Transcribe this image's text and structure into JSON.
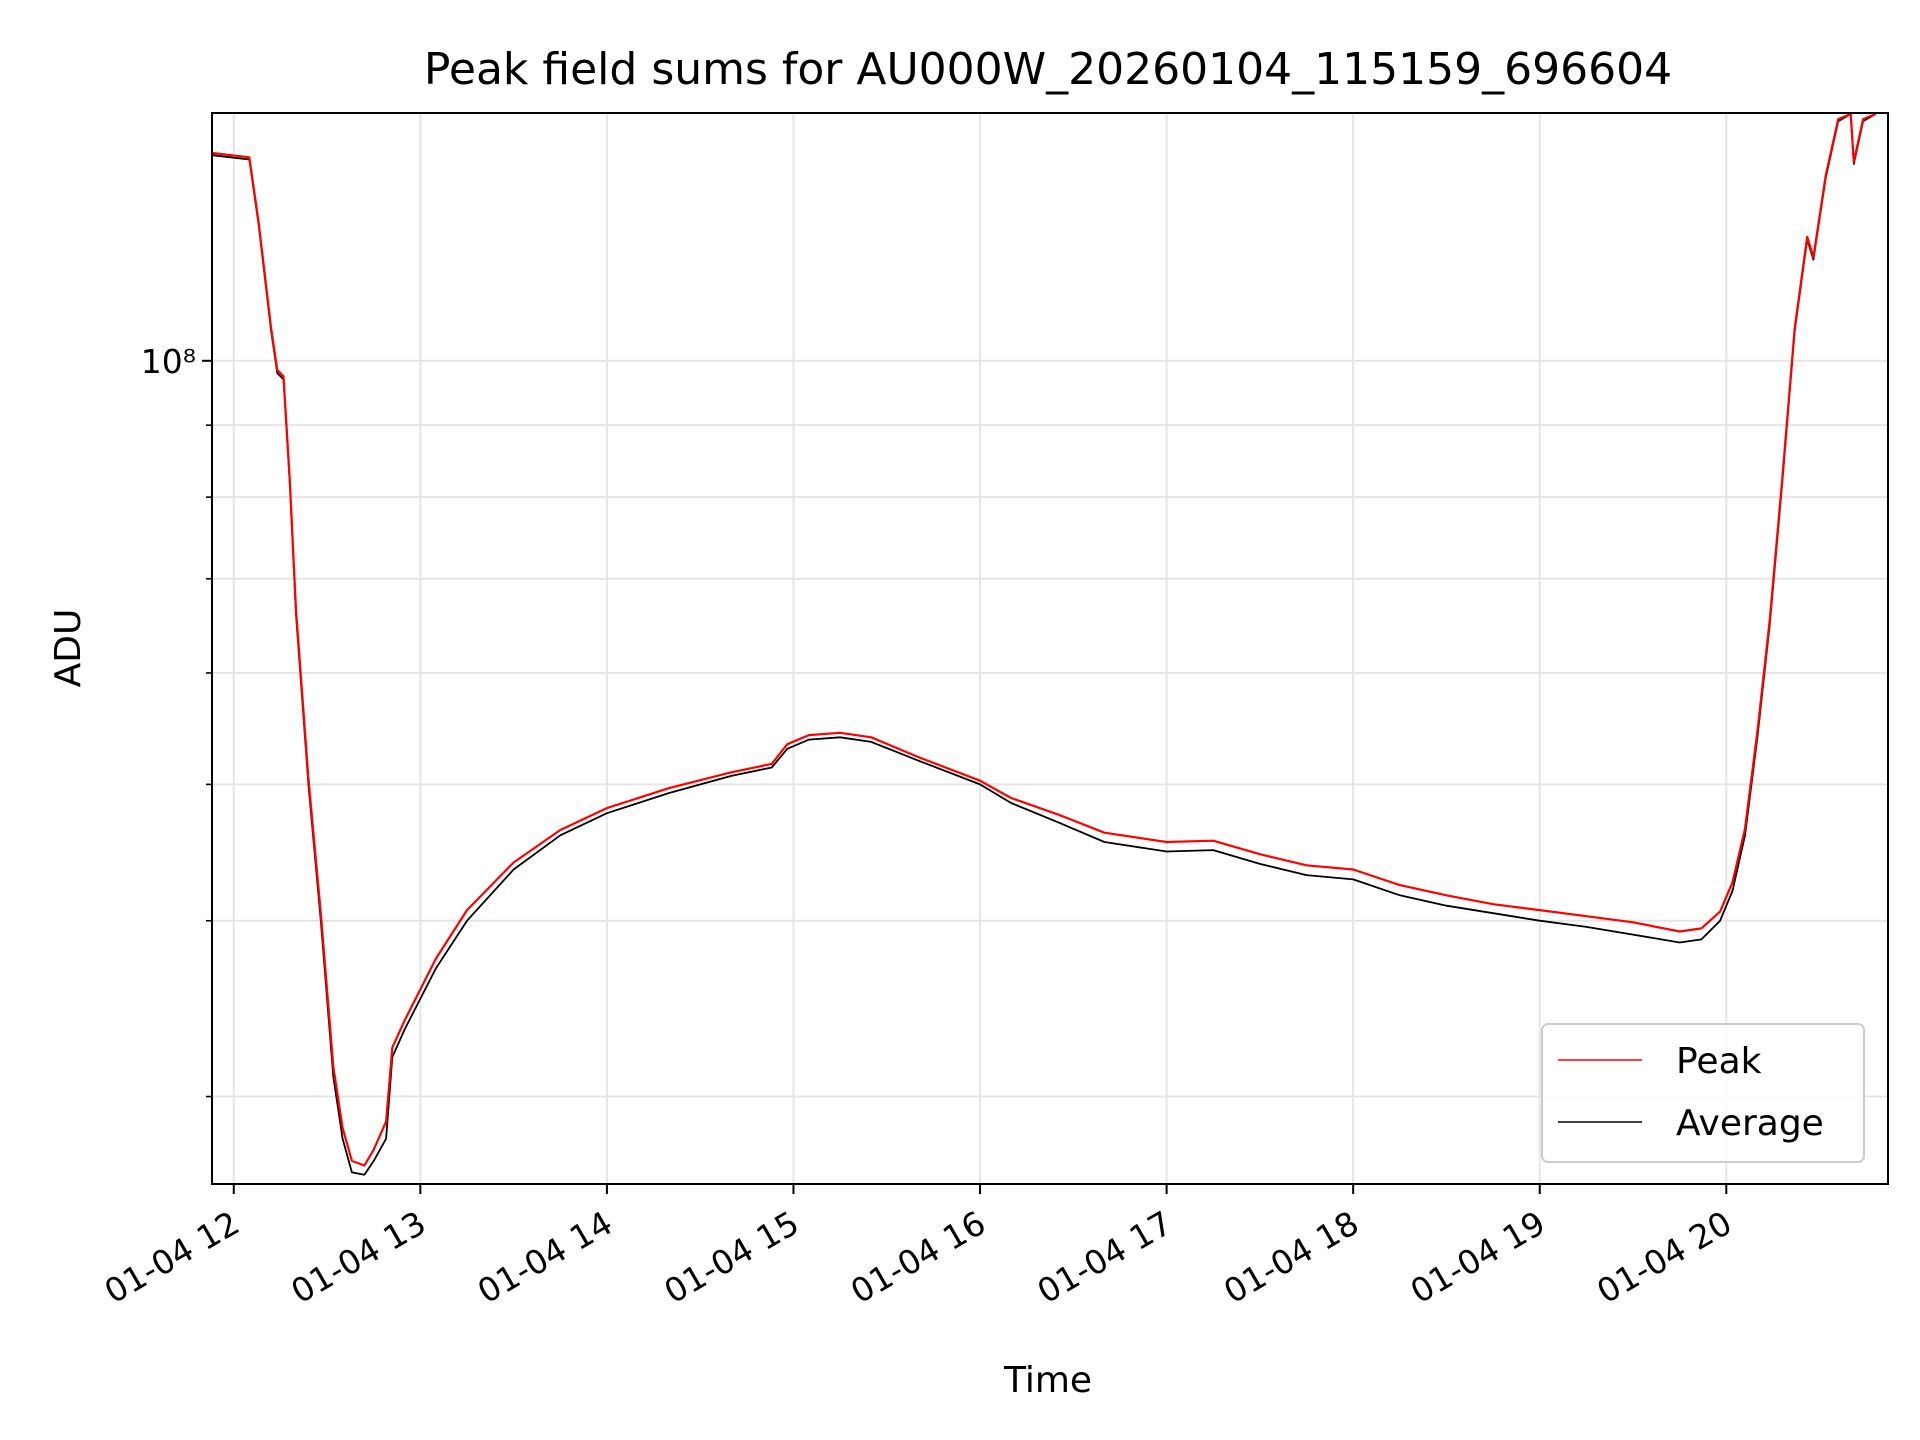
{
  "chart_data": {
    "type": "line",
    "title": "Peak field sums for AU000W_20260104_115159_696604",
    "xlabel": "Time",
    "ylabel": "ADU",
    "y_scale": "log",
    "grid": true,
    "legend_position": "lower-right",
    "xlim": [
      "2026-01-04 11:53",
      "2026-01-04 20:52"
    ],
    "ylim": [
      26000000,
      150000000
    ],
    "x_ticks": [
      {
        "value": "2026-01-04 12:00",
        "label": "01-04 12"
      },
      {
        "value": "2026-01-04 13:00",
        "label": "01-04 13"
      },
      {
        "value": "2026-01-04 14:00",
        "label": "01-04 14"
      },
      {
        "value": "2026-01-04 15:00",
        "label": "01-04 15"
      },
      {
        "value": "2026-01-04 16:00",
        "label": "01-04 16"
      },
      {
        "value": "2026-01-04 17:00",
        "label": "01-04 17"
      },
      {
        "value": "2026-01-04 18:00",
        "label": "01-04 18"
      },
      {
        "value": "2026-01-04 19:00",
        "label": "01-04 19"
      },
      {
        "value": "2026-01-04 20:00",
        "label": "01-04 20"
      }
    ],
    "y_major_ticks": [
      {
        "value": 100000000,
        "label": "10⁸"
      }
    ],
    "y_minor_ticks": [
      30000000,
      40000000,
      50000000,
      60000000,
      70000000,
      80000000,
      90000000,
      200000000
    ],
    "series": [
      {
        "name": "Average",
        "color": "#000000",
        "points": [
          [
            "2026-01-04 11:53",
            140000000
          ],
          [
            "2026-01-04 12:05",
            139000000
          ],
          [
            "2026-01-04 12:08",
            125000000
          ],
          [
            "2026-01-04 12:12",
            105000000
          ],
          [
            "2026-01-04 12:14",
            98000000
          ],
          [
            "2026-01-04 12:16",
            97000000
          ],
          [
            "2026-01-04 12:18",
            82000000
          ],
          [
            "2026-01-04 12:20",
            66000000
          ],
          [
            "2026-01-04 12:24",
            50000000
          ],
          [
            "2026-01-04 12:28",
            40000000
          ],
          [
            "2026-01-04 12:32",
            31000000
          ],
          [
            "2026-01-04 12:35",
            28000000
          ],
          [
            "2026-01-04 12:38",
            26500000
          ],
          [
            "2026-01-04 12:42",
            26400000
          ],
          [
            "2026-01-04 12:45",
            27000000
          ],
          [
            "2026-01-04 12:49",
            28000000
          ],
          [
            "2026-01-04 12:51",
            32000000
          ],
          [
            "2026-01-04 12:55",
            33500000
          ],
          [
            "2026-01-04 13:05",
            37000000
          ],
          [
            "2026-01-04 13:15",
            40000000
          ],
          [
            "2026-01-04 13:30",
            43500000
          ],
          [
            "2026-01-04 13:45",
            46000000
          ],
          [
            "2026-01-04 14:00",
            47700000
          ],
          [
            "2026-01-04 14:20",
            49300000
          ],
          [
            "2026-01-04 14:40",
            50700000
          ],
          [
            "2026-01-04 14:53",
            51400000
          ],
          [
            "2026-01-04 14:58",
            53000000
          ],
          [
            "2026-01-04 15:05",
            53800000
          ],
          [
            "2026-01-04 15:15",
            54000000
          ],
          [
            "2026-01-04 15:25",
            53600000
          ],
          [
            "2026-01-04 15:40",
            52000000
          ],
          [
            "2026-01-04 16:00",
            50000000
          ],
          [
            "2026-01-04 16:10",
            48500000
          ],
          [
            "2026-01-04 16:25",
            47000000
          ],
          [
            "2026-01-04 16:40",
            45500000
          ],
          [
            "2026-01-04 17:00",
            44800000
          ],
          [
            "2026-01-04 17:15",
            44900000
          ],
          [
            "2026-01-04 17:30",
            43900000
          ],
          [
            "2026-01-04 17:45",
            43100000
          ],
          [
            "2026-01-04 18:00",
            42800000
          ],
          [
            "2026-01-04 18:15",
            41700000
          ],
          [
            "2026-01-04 18:30",
            41000000
          ],
          [
            "2026-01-04 18:45",
            40500000
          ],
          [
            "2026-01-04 19:00",
            40000000
          ],
          [
            "2026-01-04 19:15",
            39600000
          ],
          [
            "2026-01-04 19:30",
            39100000
          ],
          [
            "2026-01-04 19:45",
            38600000
          ],
          [
            "2026-01-04 19:52",
            38800000
          ],
          [
            "2026-01-04 19:58",
            40000000
          ],
          [
            "2026-01-04 20:02",
            42000000
          ],
          [
            "2026-01-04 20:06",
            46000000
          ],
          [
            "2026-01-04 20:10",
            54000000
          ],
          [
            "2026-01-04 20:14",
            65000000
          ],
          [
            "2026-01-04 20:18",
            82000000
          ],
          [
            "2026-01-04 20:22",
            105000000
          ],
          [
            "2026-01-04 20:26",
            122000000
          ],
          [
            "2026-01-04 20:28",
            118000000
          ],
          [
            "2026-01-04 20:32",
            135000000
          ],
          [
            "2026-01-04 20:36",
            148000000
          ],
          [
            "2026-01-04 20:40",
            150000000
          ],
          [
            "2026-01-04 20:41",
            138000000
          ],
          [
            "2026-01-04 20:44",
            148000000
          ],
          [
            "2026-01-04 20:48",
            150000000
          ]
        ]
      },
      {
        "name": "Peak",
        "color": "#ff0000",
        "points": [
          [
            "2026-01-04 11:53",
            140500000
          ],
          [
            "2026-01-04 12:05",
            139500000
          ],
          [
            "2026-01-04 12:08",
            125500000
          ],
          [
            "2026-01-04 12:12",
            105500000
          ],
          [
            "2026-01-04 12:14",
            98500000
          ],
          [
            "2026-01-04 12:16",
            97500000
          ],
          [
            "2026-01-04 12:18",
            82500000
          ],
          [
            "2026-01-04 12:20",
            66500000
          ],
          [
            "2026-01-04 12:24",
            50500000
          ],
          [
            "2026-01-04 12:28",
            40500000
          ],
          [
            "2026-01-04 12:32",
            31500000
          ],
          [
            "2026-01-04 12:35",
            28500000
          ],
          [
            "2026-01-04 12:38",
            27000000
          ],
          [
            "2026-01-04 12:42",
            26800000
          ],
          [
            "2026-01-04 12:45",
            27500000
          ],
          [
            "2026-01-04 12:49",
            28800000
          ],
          [
            "2026-01-04 12:51",
            32500000
          ],
          [
            "2026-01-04 12:55",
            34000000
          ],
          [
            "2026-01-04 13:05",
            37600000
          ],
          [
            "2026-01-04 13:15",
            40700000
          ],
          [
            "2026-01-04 13:30",
            44000000
          ],
          [
            "2026-01-04 13:45",
            46400000
          ],
          [
            "2026-01-04 14:00",
            48100000
          ],
          [
            "2026-01-04 14:20",
            49700000
          ],
          [
            "2026-01-04 14:40",
            51000000
          ],
          [
            "2026-01-04 14:53",
            51700000
          ],
          [
            "2026-01-04 14:58",
            53400000
          ],
          [
            "2026-01-04 15:05",
            54200000
          ],
          [
            "2026-01-04 15:15",
            54400000
          ],
          [
            "2026-01-04 15:25",
            54000000
          ],
          [
            "2026-01-04 15:40",
            52300000
          ],
          [
            "2026-01-04 16:00",
            50300000
          ],
          [
            "2026-01-04 16:10",
            48900000
          ],
          [
            "2026-01-04 16:25",
            47600000
          ],
          [
            "2026-01-04 16:40",
            46200000
          ],
          [
            "2026-01-04 17:00",
            45500000
          ],
          [
            "2026-01-04 17:15",
            45600000
          ],
          [
            "2026-01-04 17:30",
            44600000
          ],
          [
            "2026-01-04 17:45",
            43800000
          ],
          [
            "2026-01-04 18:00",
            43500000
          ],
          [
            "2026-01-04 18:15",
            42400000
          ],
          [
            "2026-01-04 18:30",
            41700000
          ],
          [
            "2026-01-04 18:45",
            41100000
          ],
          [
            "2026-01-04 19:00",
            40700000
          ],
          [
            "2026-01-04 19:15",
            40300000
          ],
          [
            "2026-01-04 19:30",
            39900000
          ],
          [
            "2026-01-04 19:45",
            39300000
          ],
          [
            "2026-01-04 19:52",
            39500000
          ],
          [
            "2026-01-04 19:58",
            40600000
          ],
          [
            "2026-01-04 20:02",
            42600000
          ],
          [
            "2026-01-04 20:06",
            46500000
          ],
          [
            "2026-01-04 20:10",
            54500000
          ],
          [
            "2026-01-04 20:14",
            65500000
          ],
          [
            "2026-01-04 20:18",
            82500000
          ],
          [
            "2026-01-04 20:22",
            105500000
          ],
          [
            "2026-01-04 20:26",
            122500000
          ],
          [
            "2026-01-04 20:28",
            118500000
          ],
          [
            "2026-01-04 20:32",
            135500000
          ],
          [
            "2026-01-04 20:36",
            148500000
          ],
          [
            "2026-01-04 20:40",
            150000000
          ],
          [
            "2026-01-04 20:41",
            138500000
          ],
          [
            "2026-01-04 20:44",
            148500000
          ],
          [
            "2026-01-04 20:48",
            150000000
          ]
        ]
      }
    ],
    "legend": [
      {
        "name": "Peak",
        "color": "#ff0000"
      },
      {
        "name": "Average",
        "color": "#000000"
      }
    ]
  }
}
